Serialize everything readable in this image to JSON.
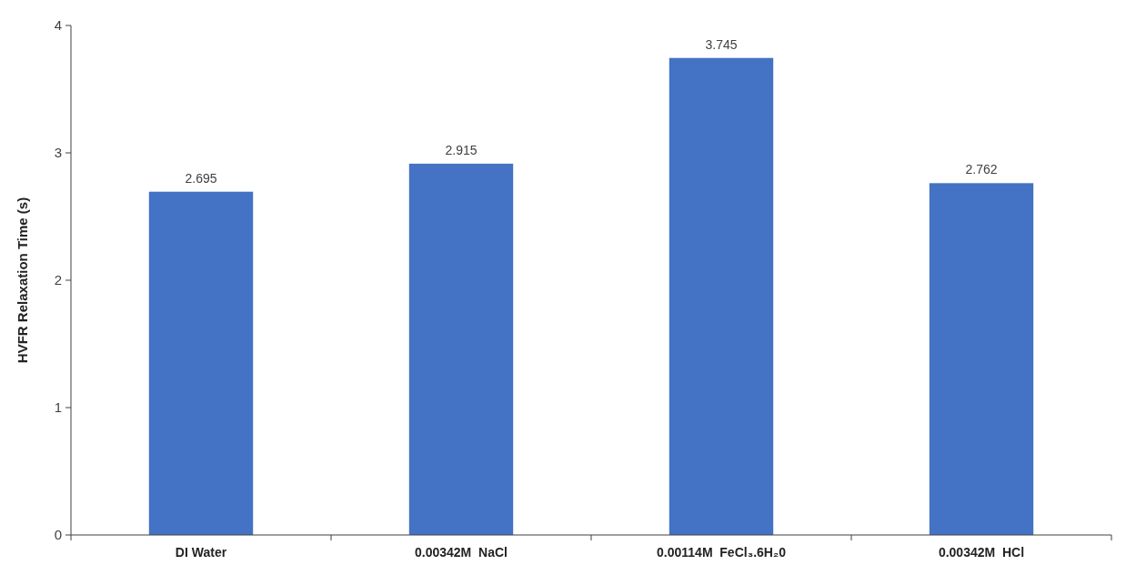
{
  "chart_data": {
    "type": "bar",
    "ylabel": "HVFR Relaxation Time (s)",
    "categories": [
      "DI Water",
      "0.00342M  NaCl",
      "0.00114M  FeCl₃.6H₂0",
      "0.00342M  HCl"
    ],
    "values": [
      2.695,
      2.915,
      3.745,
      2.762
    ],
    "color": "#4472c4",
    "ylim": [
      0,
      4
    ],
    "yticks": [
      0,
      1,
      2,
      3,
      4
    ],
    "grid": false,
    "data_labels": true
  }
}
